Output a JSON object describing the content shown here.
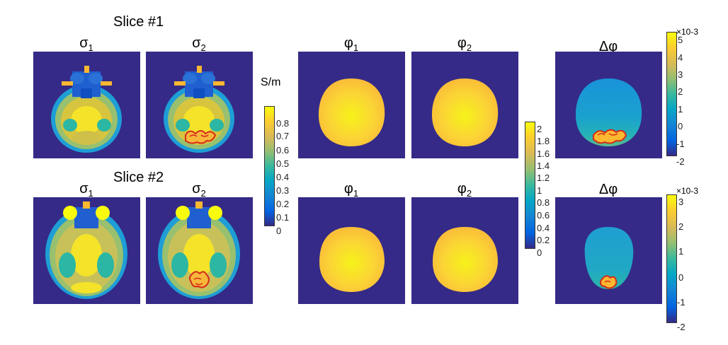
{
  "slice1_title": "Slice #1",
  "slice2_title": "Slice #2",
  "sigma": "σ",
  "phi": "φ",
  "dphi": "Δφ",
  "sub1": "1",
  "sub2": "2",
  "unit_sigma": "S/m",
  "exponent": "×10-3",
  "colorbars": {
    "sigma": {
      "ticks": [
        "0.8",
        "0.7",
        "0.6",
        "0.5",
        "0.4",
        "0.3",
        "0.2",
        "0.1",
        "0"
      ]
    },
    "phi": {
      "ticks": [
        "2",
        "1.8",
        "1.6",
        "1.4",
        "1.2",
        "1",
        "0.8",
        "0.6",
        "0.4",
        "0.2",
        "0"
      ]
    },
    "dphi1": {
      "ticks": [
        "5",
        "4",
        "3",
        "2",
        "1",
        "0",
        "-1",
        "-2"
      ]
    },
    "dphi2": {
      "ticks": [
        "3",
        "2",
        "1",
        "0",
        "-1",
        "-2"
      ]
    }
  },
  "colors": {
    "background": "#352a87",
    "yellow": "#f9fb0e",
    "orange": "#fbb830",
    "teal": "#2bb7a3",
    "cyan": "#1e9ed6",
    "contour": "#d62b1a"
  }
}
